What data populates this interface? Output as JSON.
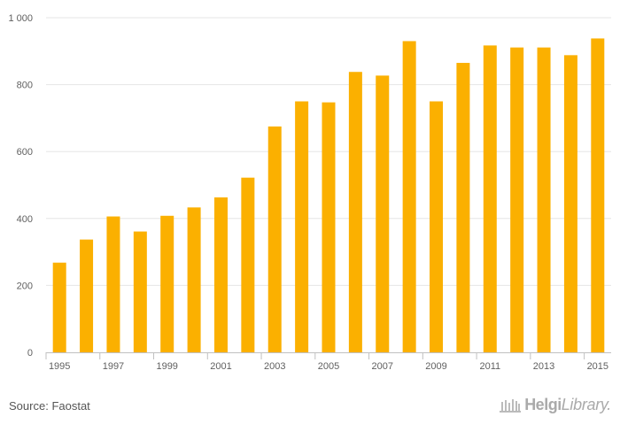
{
  "chart_data": {
    "type": "bar",
    "categories": [
      "1995",
      "1996",
      "1997",
      "1998",
      "1999",
      "2000",
      "2001",
      "2002",
      "2003",
      "2004",
      "2005",
      "2006",
      "2007",
      "2008",
      "2009",
      "2010",
      "2011",
      "2012",
      "2013",
      "2014",
      "2015"
    ],
    "x_tick_labels": [
      "1995",
      "",
      "1997",
      "",
      "1999",
      "",
      "2001",
      "",
      "2003",
      "",
      "2005",
      "",
      "2007",
      "",
      "2009",
      "",
      "2011",
      "",
      "2013",
      "",
      "2015"
    ],
    "values": [
      268,
      337,
      406,
      361,
      408,
      433,
      463,
      522,
      675,
      750,
      747,
      838,
      827,
      930,
      750,
      865,
      917,
      911,
      911,
      888,
      938
    ],
    "ylim": [
      0,
      1000
    ],
    "y_ticks": [
      0,
      200,
      400,
      600,
      800,
      1000
    ],
    "y_tick_labels": [
      "0",
      "200",
      "400",
      "600",
      "800",
      "1 000"
    ],
    "grid": true,
    "legend": "none",
    "bar_color": "#FBB000"
  },
  "footer": {
    "source_label": "Source:",
    "source_value": "Faostat"
  },
  "brand": {
    "name_bold": "Helgi",
    "name_italic": "Library.",
    "icon": "library-building-icon"
  },
  "colors": {
    "bar": "#FBB000",
    "grid": "#e6e6e6",
    "axis_text": "#606060",
    "brand": "#aaaaaa"
  }
}
